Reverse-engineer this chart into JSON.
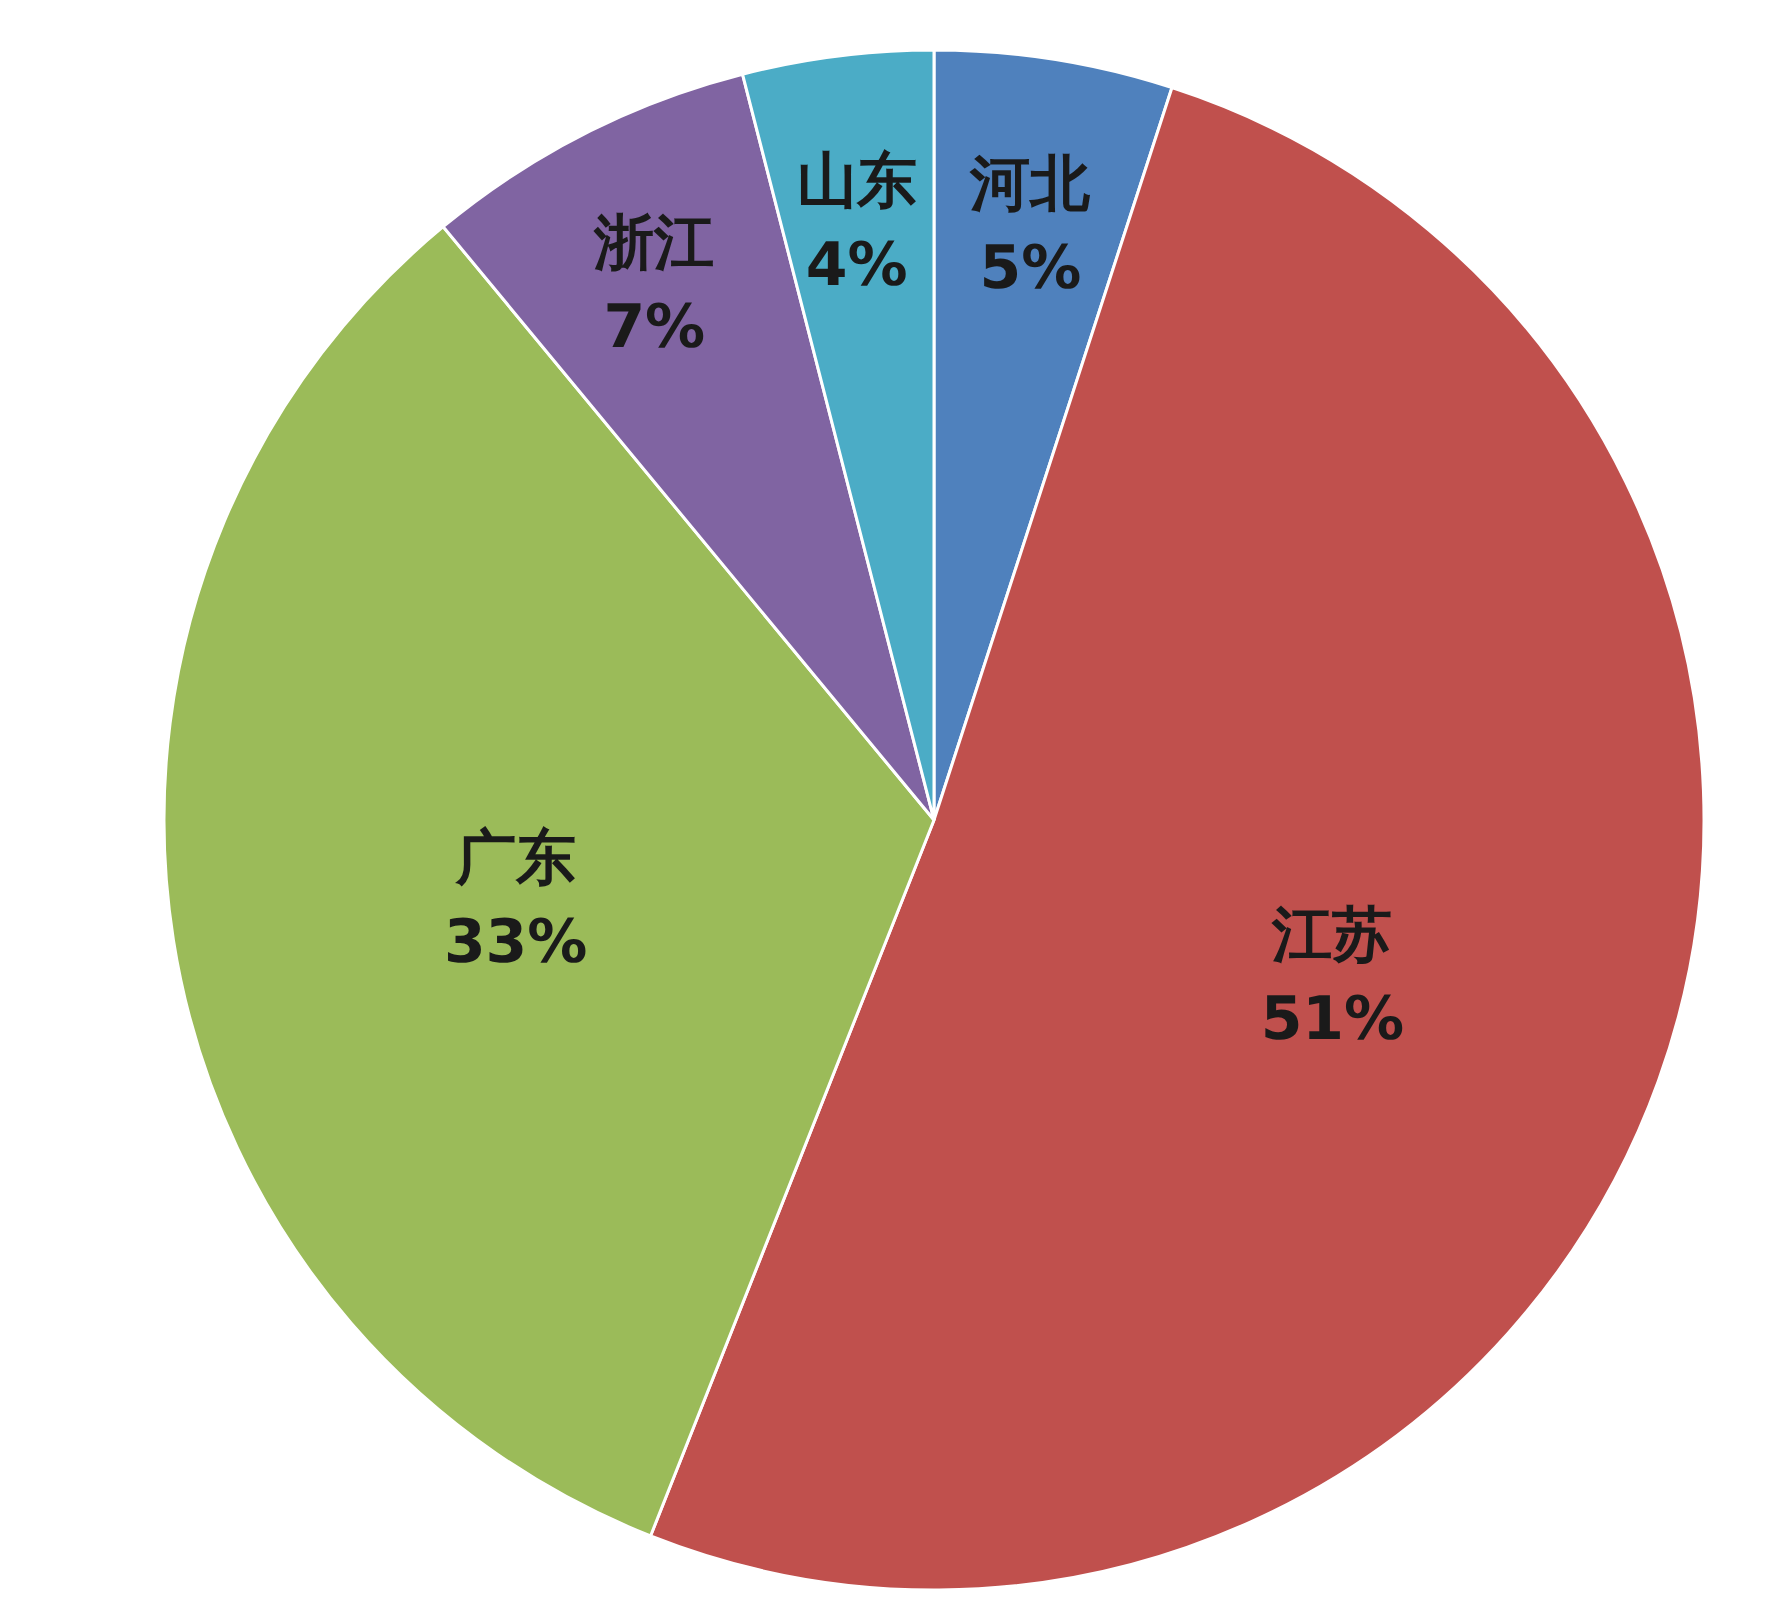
{
  "chart_data": {
    "type": "pie",
    "categories": [
      "河北",
      "江苏",
      "广东",
      "浙江",
      "山东"
    ],
    "values": [
      5,
      51,
      33,
      7,
      4
    ],
    "value_labels": [
      "5%",
      "51%",
      "33%",
      "7%",
      "4%"
    ],
    "colors": [
      "#4f81bd",
      "#c0504d",
      "#9bbb59",
      "#8064a2",
      "#4bacc6"
    ]
  }
}
